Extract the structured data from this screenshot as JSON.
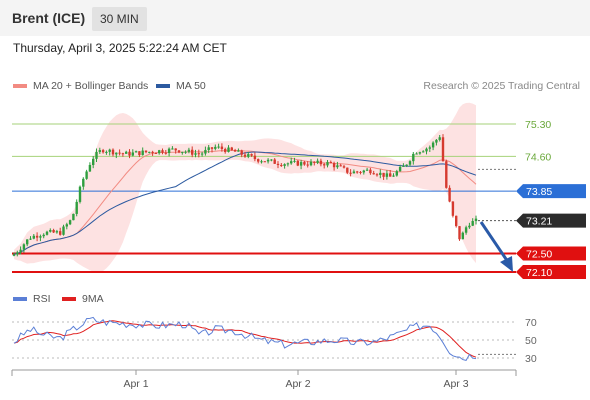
{
  "header": {
    "title": "Brent (ICE)",
    "timeframe": "30 MIN"
  },
  "datetime": "Thursday, April 3, 2025 5:22:24 AM CET",
  "legend": {
    "items": [
      {
        "label": "MA 20 + Bollinger Bands",
        "color": "#f28b82"
      },
      {
        "label": "MA 50",
        "color": "#2c5aa0"
      }
    ],
    "credit": "Research © 2025 Trading Central"
  },
  "rsi_legend": {
    "items": [
      {
        "label": "RSI",
        "color": "#5b7fd6"
      },
      {
        "label": "9MA",
        "color": "#e02020"
      }
    ]
  },
  "price_levels": [
    {
      "value": 75.3,
      "label": "75.30",
      "kind": "green"
    },
    {
      "value": 74.6,
      "label": "74.60",
      "kind": "green"
    },
    {
      "value": 73.85,
      "label": "73.85",
      "kind": "blue"
    },
    {
      "value": 73.21,
      "label": "73.21",
      "kind": "current"
    },
    {
      "value": 72.5,
      "label": "72.50",
      "kind": "red"
    },
    {
      "value": 72.1,
      "label": "72.10",
      "kind": "red"
    }
  ],
  "rsi_ticks": [
    {
      "value": 70,
      "label": "70"
    },
    {
      "value": 50,
      "label": "50"
    },
    {
      "value": 30,
      "label": "30"
    }
  ],
  "x_labels": [
    "Apr 1",
    "Apr 2",
    "Apr 3"
  ],
  "colors": {
    "up": "#2e9e3e",
    "down": "#d63a2f",
    "band": "#fde2e2",
    "ma20": "#f28b82",
    "ma50": "#2c5aa0",
    "level_blue": "#2b6fd6",
    "level_red": "#e01010",
    "level_green": "#a6d27a",
    "current": "#2b2b2b"
  }
}
